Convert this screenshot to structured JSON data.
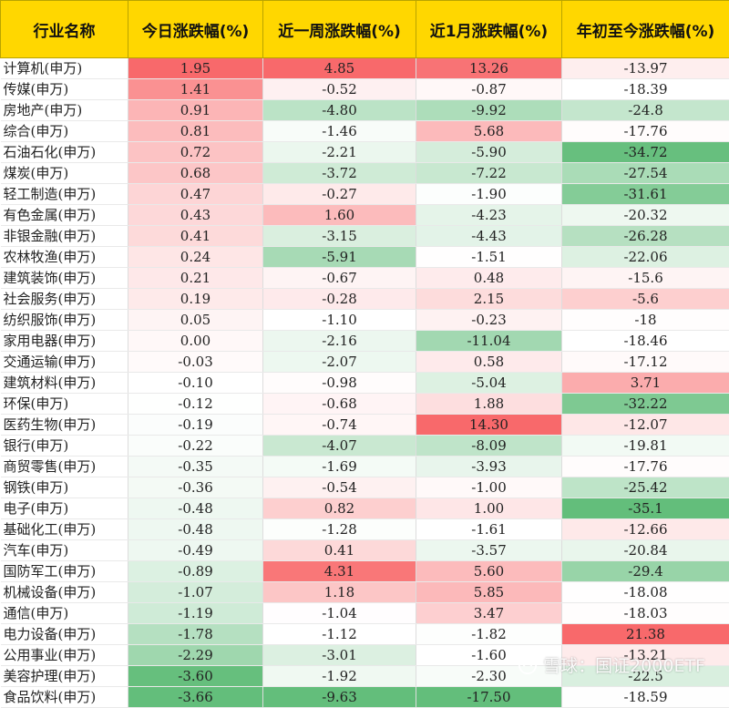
{
  "headers": [
    "行业名称",
    "今日涨跌幅(%)",
    "近一周涨跌幅(%)",
    "近1月涨跌幅(%)",
    "年初至今涨跌幅(%)"
  ],
  "colors": {
    "header_bg": "#ffd700",
    "positive": "#f8696b",
    "negative": "#63be7b",
    "neutral": "#ffffff"
  },
  "rows": [
    [
      "计算机(申万)",
      "1.95",
      "4.85",
      "13.26",
      "-13.97"
    ],
    [
      "传媒(申万)",
      "1.41",
      "-0.52",
      "-0.87",
      "-18.39"
    ],
    [
      "房地产(申万)",
      "0.91",
      "-4.80",
      "-9.92",
      "-24.8"
    ],
    [
      "综合(申万)",
      "0.81",
      "-1.46",
      "5.68",
      "-17.76"
    ],
    [
      "石油石化(申万)",
      "0.72",
      "-2.21",
      "-5.90",
      "-34.72"
    ],
    [
      "煤炭(申万)",
      "0.68",
      "-3.72",
      "-7.22",
      "-27.54"
    ],
    [
      "轻工制造(申万)",
      "0.47",
      "-0.27",
      "-1.90",
      "-31.61"
    ],
    [
      "有色金属(申万)",
      "0.43",
      "1.60",
      "-4.23",
      "-20.32"
    ],
    [
      "非银金融(申万)",
      "0.41",
      "-3.15",
      "-4.43",
      "-26.28"
    ],
    [
      "农林牧渔(申万)",
      "0.24",
      "-5.91",
      "-1.51",
      "-22.06"
    ],
    [
      "建筑装饰(申万)",
      "0.21",
      "-0.67",
      "0.48",
      "-15.6"
    ],
    [
      "社会服务(申万)",
      "0.19",
      "-0.28",
      "2.15",
      "-5.6"
    ],
    [
      "纺织服饰(申万)",
      "0.05",
      "-1.10",
      "-0.23",
      "-18"
    ],
    [
      "家用电器(申万)",
      "0.00",
      "-2.16",
      "-11.04",
      "-18.46"
    ],
    [
      "交通运输(申万)",
      "-0.03",
      "-2.07",
      "0.58",
      "-17.12"
    ],
    [
      "建筑材料(申万)",
      "-0.10",
      "-0.98",
      "-5.04",
      "3.71"
    ],
    [
      "环保(申万)",
      "-0.12",
      "-0.68",
      "1.88",
      "-32.22"
    ],
    [
      "医药生物(申万)",
      "-0.19",
      "-0.74",
      "14.30",
      "-12.07"
    ],
    [
      "银行(申万)",
      "-0.22",
      "-4.07",
      "-8.09",
      "-19.81"
    ],
    [
      "商贸零售(申万)",
      "-0.35",
      "-1.69",
      "-3.93",
      "-17.76"
    ],
    [
      "钢铁(申万)",
      "-0.36",
      "-0.54",
      "-1.00",
      "-25.42"
    ],
    [
      "电子(申万)",
      "-0.48",
      "0.82",
      "1.00",
      "-35.1"
    ],
    [
      "基础化工(申万)",
      "-0.48",
      "-1.28",
      "-1.61",
      "-12.66"
    ],
    [
      "汽车(申万)",
      "-0.49",
      "0.41",
      "-3.57",
      "-20.84"
    ],
    [
      "国防军工(申万)",
      "-0.89",
      "4.31",
      "5.60",
      "-29.4"
    ],
    [
      "机械设备(申万)",
      "-1.07",
      "1.18",
      "5.85",
      "-18.08"
    ],
    [
      "通信(申万)",
      "-1.19",
      "-1.04",
      "3.47",
      "-18.03"
    ],
    [
      "电力设备(申万)",
      "-1.78",
      "-1.12",
      "-1.82",
      "21.38"
    ],
    [
      "公用事业(申万)",
      "-2.29",
      "-3.01",
      "-1.60",
      "-13.21"
    ],
    [
      "美容护理(申万)",
      "-3.60",
      "-1.92",
      "-2.30",
      "-22.5"
    ],
    [
      "食品饮料(申万)",
      "-3.66",
      "-9.63",
      "-17.50",
      "-18.59"
    ]
  ],
  "watermark": {
    "text": "雪球：国证2000ETF",
    "icon": "snowball-logo-icon"
  }
}
